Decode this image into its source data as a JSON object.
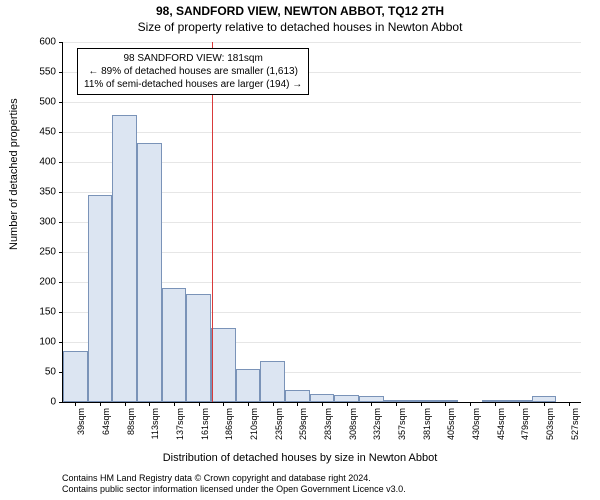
{
  "chart": {
    "type": "histogram",
    "title": "98, SANDFORD VIEW, NEWTON ABBOT, TQ12 2TH",
    "subtitle": "Size of property relative to detached houses in Newton Abbot",
    "ylabel": "Number of detached properties",
    "xlabel": "Distribution of detached houses by size in Newton Abbot",
    "background_color": "#ffffff",
    "grid_color": "#e6e6e6",
    "bar_fill": "#dce5f2",
    "bar_border": "#7a93b8",
    "ref_line_color": "#d93a3a",
    "ytick_step": 50,
    "ylim": [
      0,
      600
    ],
    "xlim_idx": [
      0,
      21
    ],
    "ref_line_at_idx": 6.03,
    "categories": [
      "39sqm",
      "64sqm",
      "88sqm",
      "113sqm",
      "137sqm",
      "161sqm",
      "186sqm",
      "210sqm",
      "235sqm",
      "259sqm",
      "283sqm",
      "308sqm",
      "332sqm",
      "357sqm",
      "381sqm",
      "405sqm",
      "430sqm",
      "454sqm",
      "479sqm",
      "503sqm",
      "527sqm"
    ],
    "values": [
      85,
      345,
      478,
      432,
      190,
      180,
      123,
      55,
      68,
      20,
      13,
      12,
      10,
      2,
      4,
      2,
      0,
      4,
      2,
      10,
      0
    ],
    "annotation": {
      "line1": "98 SANDFORD VIEW: 181sqm",
      "line2": "← 89% of detached houses are smaller (1,613)",
      "line3": "11% of semi-detached houses are larger (194) →"
    },
    "attribution": {
      "line1": "Contains HM Land Registry data © Crown copyright and database right 2024.",
      "line2": "Contains public sector information licensed under the Open Government Licence v3.0."
    },
    "title_fontsize": 12,
    "subtitle_fontsize": 12,
    "label_fontsize": 11,
    "tick_fontsize": 10,
    "anno_fontsize": 10,
    "attrib_fontsize": 9
  }
}
